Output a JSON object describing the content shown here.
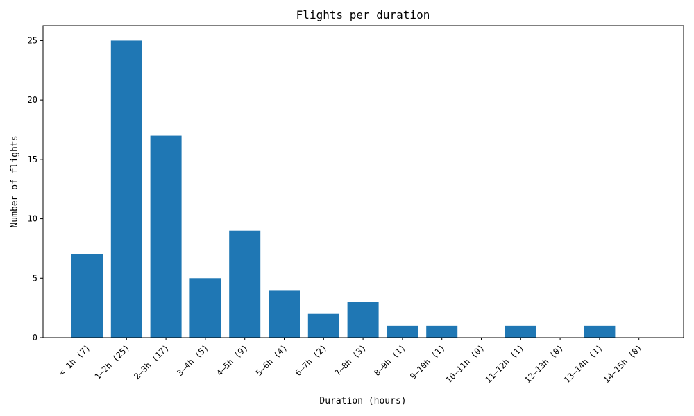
{
  "chart_data": {
    "type": "bar",
    "title": "Flights per duration",
    "xlabel": "Duration (hours)",
    "ylabel": "Number of flights",
    "categories": [
      "< 1h (7)",
      "1–2h (25)",
      "2–3h (17)",
      "3–4h (5)",
      "4–5h (9)",
      "5–6h (4)",
      "6–7h (2)",
      "7–8h (3)",
      "8–9h (1)",
      "9–10h (1)",
      "10–11h (0)",
      "11–12h (1)",
      "12–13h (0)",
      "13–14h (1)",
      "14–15h (0)"
    ],
    "values": [
      7,
      25,
      17,
      5,
      9,
      4,
      2,
      3,
      1,
      1,
      0,
      1,
      0,
      1,
      0
    ],
    "ylim": [
      0,
      26.25
    ],
    "yticks": [
      0,
      5,
      10,
      15,
      20,
      25
    ],
    "bar_color": "#1f77b4",
    "grid": false,
    "legend": "none"
  }
}
